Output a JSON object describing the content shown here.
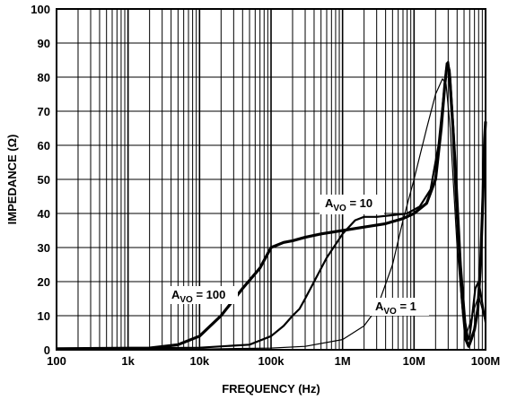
{
  "chart_data": {
    "type": "line",
    "xlabel": "FREQUENCY (Hz)",
    "ylabel": "IMPEDANCE (Ω)",
    "xscale": "log",
    "xlim": [
      100,
      100000000
    ],
    "ylim": [
      0,
      100
    ],
    "grid": true,
    "x_ticks": [
      {
        "value": 100,
        "label": "100"
      },
      {
        "value": 1000,
        "label": "1k"
      },
      {
        "value": 10000,
        "label": "10k"
      },
      {
        "value": 100000,
        "label": "100k"
      },
      {
        "value": 1000000,
        "label": "1M"
      },
      {
        "value": 10000000,
        "label": "10M"
      },
      {
        "value": 100000000,
        "label": "100M"
      }
    ],
    "y_ticks": [
      0,
      10,
      20,
      30,
      40,
      50,
      60,
      70,
      80,
      90,
      100
    ],
    "series": [
      {
        "label_main": "A",
        "label_sub": "VO",
        "label_rest": " = 1",
        "stroke": "thin",
        "points": [
          [
            100,
            0.1
          ],
          [
            10000,
            0.2
          ],
          [
            100000,
            0.5
          ],
          [
            300000,
            1
          ],
          [
            1000000,
            3
          ],
          [
            2000000,
            7
          ],
          [
            3000000,
            12
          ],
          [
            5000000,
            25
          ],
          [
            7000000,
            38
          ],
          [
            10000000,
            50
          ],
          [
            15000000,
            65
          ],
          [
            20000000,
            75
          ],
          [
            25000000,
            79.5
          ],
          [
            28000000,
            78
          ],
          [
            32000000,
            65
          ],
          [
            40000000,
            30
          ],
          [
            48000000,
            10
          ],
          [
            55000000,
            5
          ],
          [
            65000000,
            10
          ],
          [
            80000000,
            16
          ],
          [
            100000000,
            8
          ]
        ]
      },
      {
        "label_main": "A",
        "label_sub": "VO",
        "label_rest": " = 10",
        "stroke": "medium",
        "points": [
          [
            100,
            0.3
          ],
          [
            10000,
            0.6
          ],
          [
            50000,
            1.5
          ],
          [
            100000,
            4
          ],
          [
            150000,
            7
          ],
          [
            200000,
            10
          ],
          [
            250000,
            12
          ],
          [
            300000,
            15
          ],
          [
            400000,
            20
          ],
          [
            600000,
            27
          ],
          [
            1000000,
            34
          ],
          [
            1500000,
            38
          ],
          [
            2000000,
            39
          ],
          [
            3000000,
            39
          ],
          [
            5000000,
            39.5
          ],
          [
            8000000,
            40
          ],
          [
            12000000,
            42
          ],
          [
            17000000,
            47
          ],
          [
            22000000,
            60
          ],
          [
            26000000,
            75
          ],
          [
            28000000,
            82
          ],
          [
            30000000,
            84.5
          ],
          [
            32000000,
            80
          ],
          [
            38000000,
            55
          ],
          [
            45000000,
            25
          ],
          [
            52000000,
            8
          ],
          [
            57000000,
            3
          ],
          [
            60000000,
            4
          ],
          [
            65000000,
            10
          ],
          [
            72000000,
            18
          ],
          [
            80000000,
            20
          ],
          [
            100000000,
            8
          ]
        ]
      },
      {
        "label_main": "A",
        "label_sub": "VO",
        "label_rest": " = 100",
        "stroke": "thick",
        "points": [
          [
            100,
            0.3
          ],
          [
            2000,
            0.5
          ],
          [
            5000,
            1.5
          ],
          [
            10000,
            4
          ],
          [
            20000,
            10
          ],
          [
            40000,
            18
          ],
          [
            70000,
            24
          ],
          [
            100000,
            30
          ],
          [
            150000,
            31.5
          ],
          [
            200000,
            32
          ],
          [
            300000,
            33
          ],
          [
            500000,
            34
          ],
          [
            1000000,
            35
          ],
          [
            2000000,
            36
          ],
          [
            4000000,
            37
          ],
          [
            7000000,
            38.5
          ],
          [
            10000000,
            40
          ],
          [
            15000000,
            43
          ],
          [
            20000000,
            50
          ],
          [
            24000000,
            65
          ],
          [
            27000000,
            78
          ],
          [
            29000000,
            84
          ],
          [
            31000000,
            82
          ],
          [
            35000000,
            65
          ],
          [
            40000000,
            40
          ],
          [
            47000000,
            15
          ],
          [
            53000000,
            3
          ],
          [
            58000000,
            1
          ],
          [
            63000000,
            3
          ],
          [
            70000000,
            6
          ],
          [
            78000000,
            12
          ],
          [
            85000000,
            25
          ],
          [
            92000000,
            45
          ],
          [
            97000000,
            62
          ],
          [
            100000000,
            67
          ]
        ]
      }
    ]
  }
}
